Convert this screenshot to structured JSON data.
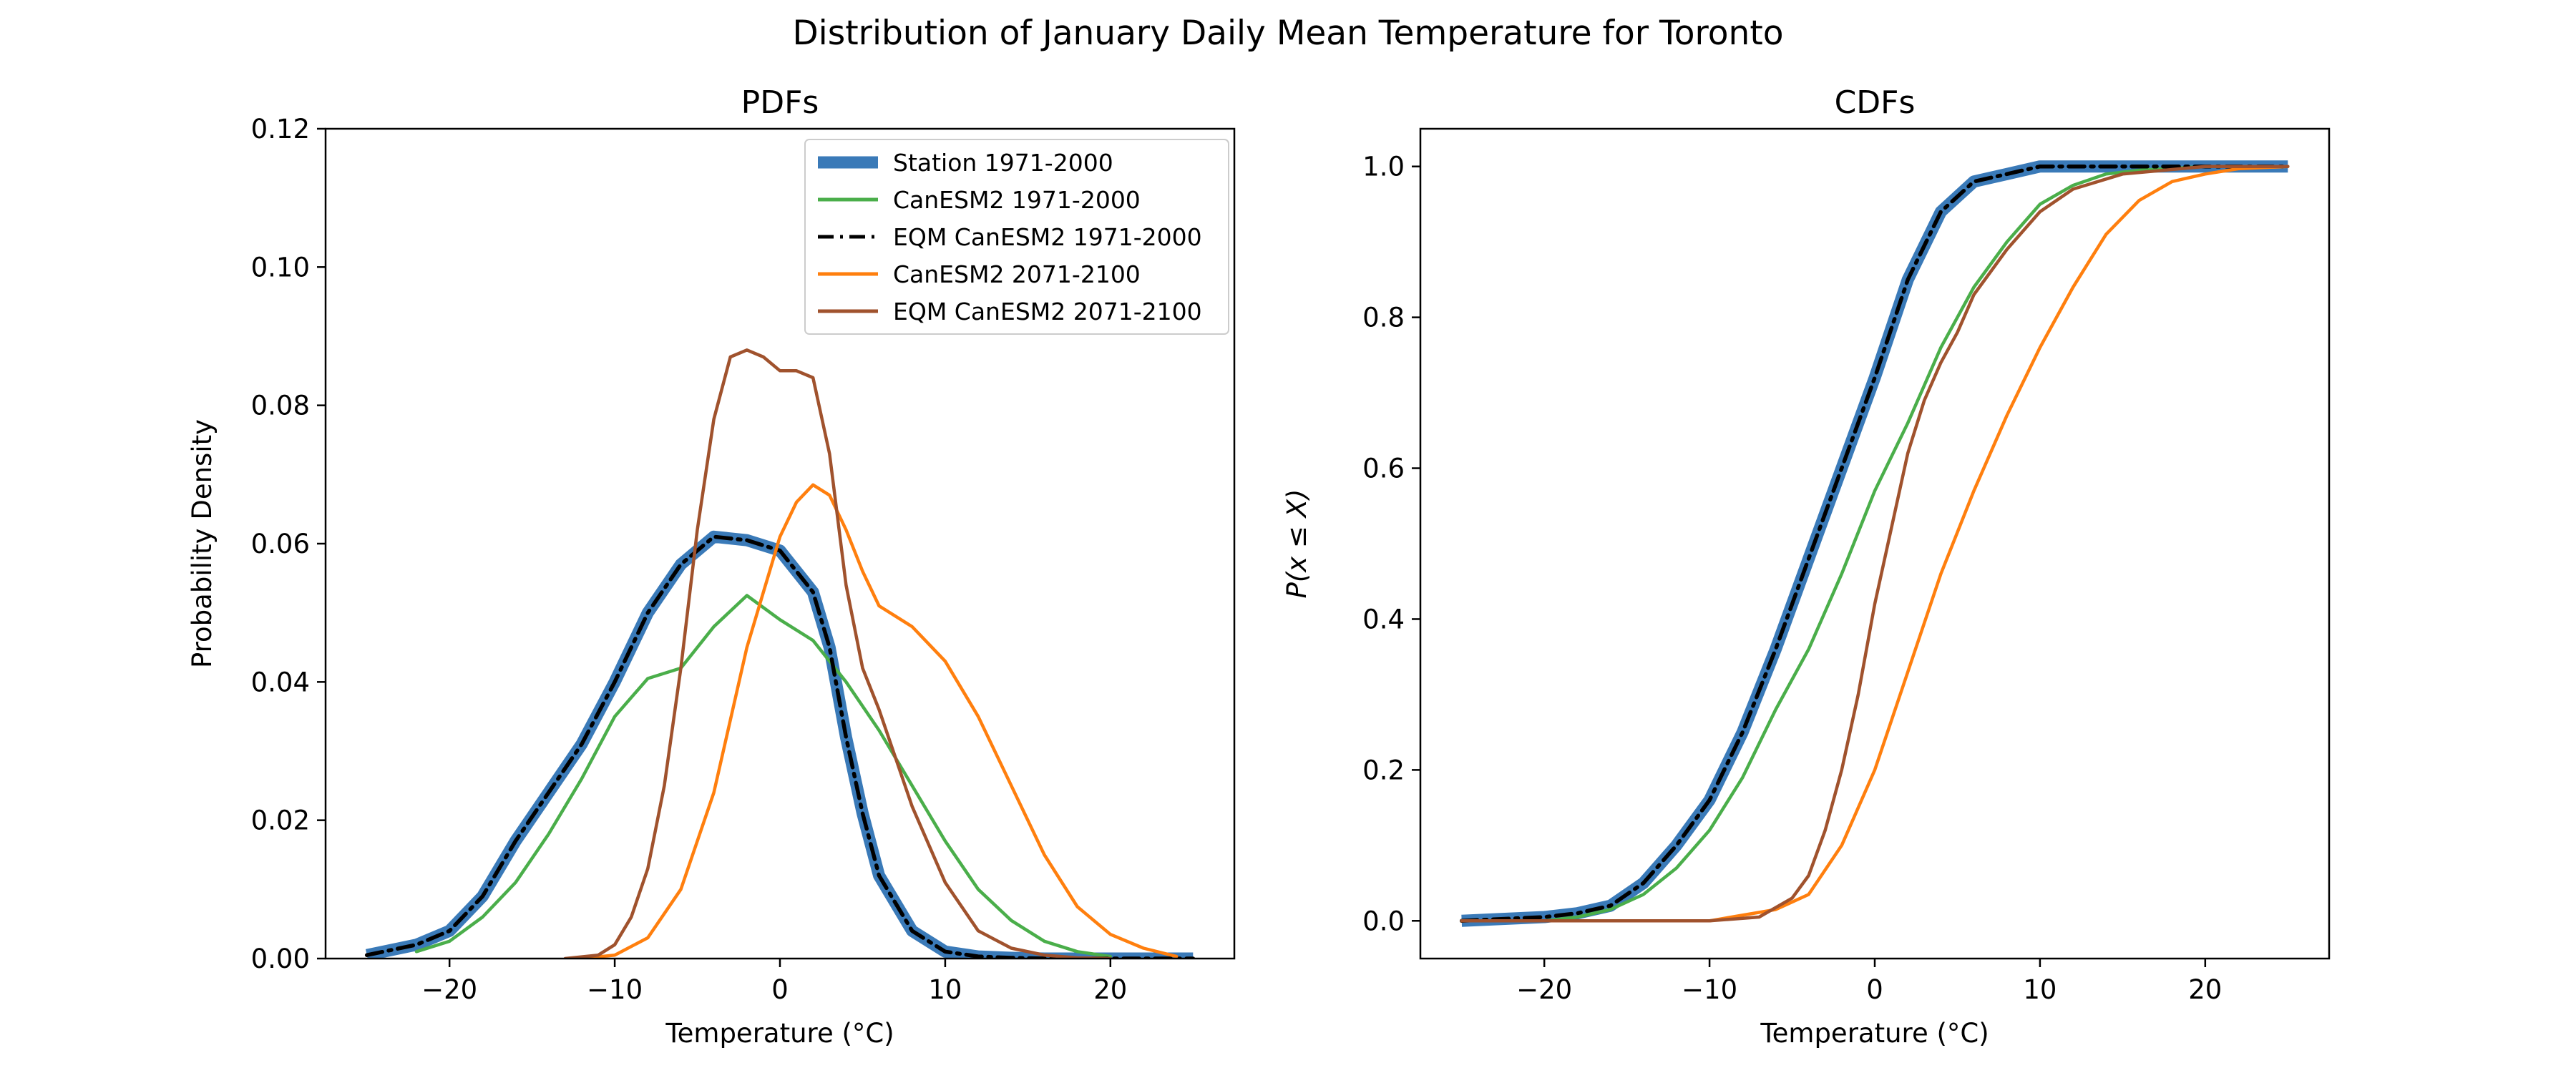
{
  "figure": {
    "suptitle": "Distribution of January Daily Mean Temperature for Toronto"
  },
  "colors": {
    "station": "#3a7ab8",
    "canesm2_hist": "#4aae4a",
    "eqm_hist": "#000000",
    "canesm2_fut": "#ff7f0e",
    "eqm_fut": "#a0522d"
  },
  "legend": {
    "entries": [
      {
        "label": "Station 1971-2000",
        "key": "station",
        "style": "thick"
      },
      {
        "label": "CanESM2 1971-2000",
        "key": "canesm2_hist",
        "style": "solid"
      },
      {
        "label": "EQM CanESM2 1971-2000",
        "key": "eqm_hist",
        "style": "dashdot"
      },
      {
        "label": "CanESM2 2071-2100",
        "key": "canesm2_fut",
        "style": "solid"
      },
      {
        "label": "EQM CanESM2 2071-2100",
        "key": "eqm_fut",
        "style": "solid"
      }
    ],
    "placement": "upper-right"
  },
  "chart_data": [
    {
      "type": "line",
      "title": "PDFs",
      "xlabel": "Temperature (°C)",
      "ylabel": "Probability Density",
      "xlim": [
        -27.5,
        27.5
      ],
      "ylim": [
        0.0,
        0.12
      ],
      "xticks": [
        -20,
        -10,
        0,
        10,
        20
      ],
      "xtick_labels": [
        "−20",
        "−10",
        "0",
        "10",
        "20"
      ],
      "yticks": [
        0.0,
        0.02,
        0.04,
        0.06,
        0.08,
        0.1,
        0.12
      ],
      "ytick_labels": [
        "0.00",
        "0.02",
        "0.04",
        "0.06",
        "0.08",
        "0.10",
        "0.12"
      ],
      "series": [
        {
          "name": "Station 1971-2000",
          "key": "station",
          "style": "thick",
          "x": [
            -25,
            -22,
            -20,
            -18,
            -16,
            -14,
            -12,
            -10,
            -8,
            -6,
            -4,
            -2,
            0,
            2,
            3,
            4,
            5,
            6,
            8,
            10,
            12,
            14,
            16,
            18,
            20,
            22,
            25
          ],
          "y": [
            0.0005,
            0.002,
            0.004,
            0.009,
            0.017,
            0.024,
            0.031,
            0.04,
            0.05,
            0.057,
            0.061,
            0.0605,
            0.059,
            0.053,
            0.045,
            0.032,
            0.021,
            0.012,
            0.004,
            0.001,
            0.0003,
            0.0001,
            0,
            0,
            0,
            0,
            0
          ]
        },
        {
          "name": "CanESM2 1971-2000",
          "key": "canesm2_hist",
          "style": "solid",
          "x": [
            -22,
            -20,
            -18,
            -16,
            -14,
            -12,
            -10,
            -8,
            -6,
            -4,
            -2,
            0,
            2,
            4,
            6,
            8,
            10,
            12,
            14,
            16,
            18,
            20
          ],
          "y": [
            0.001,
            0.0025,
            0.006,
            0.011,
            0.018,
            0.026,
            0.035,
            0.0405,
            0.042,
            0.048,
            0.0525,
            0.049,
            0.046,
            0.04,
            0.033,
            0.025,
            0.017,
            0.01,
            0.0055,
            0.0025,
            0.001,
            0.0003
          ]
        },
        {
          "name": "EQM CanESM2 1971-2000",
          "key": "eqm_hist",
          "style": "dashdot",
          "x": [
            -25,
            -22,
            -20,
            -18,
            -16,
            -14,
            -12,
            -10,
            -8,
            -6,
            -4,
            -2,
            0,
            2,
            3,
            4,
            5,
            6,
            8,
            10,
            12,
            14,
            16,
            18,
            20,
            22,
            25
          ],
          "y": [
            0.0005,
            0.002,
            0.004,
            0.009,
            0.017,
            0.024,
            0.031,
            0.04,
            0.05,
            0.057,
            0.061,
            0.0605,
            0.059,
            0.053,
            0.045,
            0.032,
            0.021,
            0.012,
            0.004,
            0.001,
            0.0003,
            0.0001,
            0,
            0,
            0,
            0,
            0
          ]
        },
        {
          "name": "CanESM2 2071-2100",
          "key": "canesm2_fut",
          "style": "solid",
          "x": [
            -12,
            -10,
            -8,
            -6,
            -4,
            -2,
            0,
            1,
            2,
            3,
            4,
            5,
            6,
            8,
            10,
            12,
            14,
            16,
            18,
            20,
            22,
            24
          ],
          "y": [
            0,
            0.0005,
            0.003,
            0.01,
            0.024,
            0.045,
            0.061,
            0.066,
            0.0685,
            0.067,
            0.062,
            0.056,
            0.051,
            0.048,
            0.043,
            0.035,
            0.025,
            0.015,
            0.0075,
            0.0035,
            0.0015,
            0.0003
          ]
        },
        {
          "name": "EQM CanESM2 2071-2100",
          "key": "eqm_fut",
          "style": "solid",
          "x": [
            -13,
            -11,
            -10,
            -9,
            -8,
            -7,
            -6,
            -5,
            -4,
            -3,
            -2,
            -1,
            0,
            1,
            2,
            3,
            4,
            5,
            6,
            8,
            10,
            12,
            14,
            16,
            18,
            20
          ],
          "y": [
            0,
            0.0005,
            0.002,
            0.006,
            0.013,
            0.025,
            0.042,
            0.062,
            0.078,
            0.087,
            0.088,
            0.087,
            0.085,
            0.085,
            0.084,
            0.073,
            0.054,
            0.042,
            0.036,
            0.022,
            0.011,
            0.004,
            0.0015,
            0.0005,
            0.0001,
            0
          ]
        }
      ]
    },
    {
      "type": "line",
      "title": "CDFs",
      "xlabel": "Temperature (°C)",
      "ylabel": "P(x ≤ X)",
      "xlim": [
        -27.5,
        27.5
      ],
      "ylim": [
        -0.05,
        1.05
      ],
      "xticks": [
        -20,
        -10,
        0,
        10,
        20
      ],
      "xtick_labels": [
        "−20",
        "−10",
        "0",
        "10",
        "20"
      ],
      "yticks": [
        0.0,
        0.2,
        0.4,
        0.6,
        0.8,
        1.0
      ],
      "ytick_labels": [
        "0.0",
        "0.2",
        "0.4",
        "0.6",
        "0.8",
        "1.0"
      ],
      "series": [
        {
          "name": "Station 1971-2000",
          "key": "station",
          "style": "thick",
          "x": [
            -25,
            -20,
            -18,
            -16,
            -14,
            -12,
            -10,
            -8,
            -6,
            -4,
            -2,
            0,
            2,
            4,
            6,
            8,
            10,
            12,
            15,
            20,
            25
          ],
          "y": [
            0,
            0.005,
            0.01,
            0.02,
            0.05,
            0.1,
            0.16,
            0.25,
            0.36,
            0.48,
            0.6,
            0.72,
            0.85,
            0.94,
            0.98,
            0.99,
            1.0,
            1.0,
            1.0,
            1.0,
            1.0
          ]
        },
        {
          "name": "CanESM2 1971-2000",
          "key": "canesm2_hist",
          "style": "solid",
          "x": [
            -20,
            -18,
            -16,
            -14,
            -12,
            -10,
            -8,
            -6,
            -4,
            -2,
            0,
            2,
            4,
            6,
            8,
            10,
            12,
            14,
            16,
            20,
            25
          ],
          "y": [
            0,
            0.005,
            0.015,
            0.035,
            0.07,
            0.12,
            0.19,
            0.28,
            0.36,
            0.46,
            0.57,
            0.66,
            0.76,
            0.84,
            0.9,
            0.95,
            0.975,
            0.99,
            0.995,
            1.0,
            1.0
          ]
        },
        {
          "name": "EQM CanESM2 1971-2000",
          "key": "eqm_hist",
          "style": "dashdot",
          "x": [
            -25,
            -20,
            -18,
            -16,
            -14,
            -12,
            -10,
            -8,
            -6,
            -4,
            -2,
            0,
            2,
            4,
            6,
            8,
            10,
            12,
            15,
            20,
            25
          ],
          "y": [
            0,
            0.005,
            0.01,
            0.02,
            0.05,
            0.1,
            0.16,
            0.25,
            0.36,
            0.48,
            0.6,
            0.72,
            0.85,
            0.94,
            0.98,
            0.99,
            1.0,
            1.0,
            1.0,
            1.0,
            1.0
          ]
        },
        {
          "name": "CanESM2 2071-2100",
          "key": "canesm2_fut",
          "style": "solid",
          "x": [
            -25,
            -10,
            -6,
            -4,
            -2,
            0,
            2,
            4,
            6,
            8,
            10,
            12,
            14,
            16,
            18,
            20,
            22,
            25
          ],
          "y": [
            0,
            0,
            0.015,
            0.035,
            0.1,
            0.2,
            0.33,
            0.46,
            0.57,
            0.67,
            0.76,
            0.84,
            0.91,
            0.955,
            0.98,
            0.99,
            0.997,
            1.0
          ]
        },
        {
          "name": "EQM CanESM2 2071-2100",
          "key": "eqm_fut",
          "style": "solid",
          "x": [
            -25,
            -10,
            -7,
            -5,
            -4,
            -3,
            -2,
            -1,
            0,
            1,
            2,
            3,
            4,
            5,
            6,
            8,
            10,
            12,
            15,
            20,
            25
          ],
          "y": [
            0,
            0,
            0.005,
            0.03,
            0.06,
            0.12,
            0.2,
            0.3,
            0.42,
            0.52,
            0.62,
            0.69,
            0.74,
            0.78,
            0.83,
            0.89,
            0.94,
            0.97,
            0.99,
            1.0,
            1.0
          ]
        }
      ]
    }
  ]
}
